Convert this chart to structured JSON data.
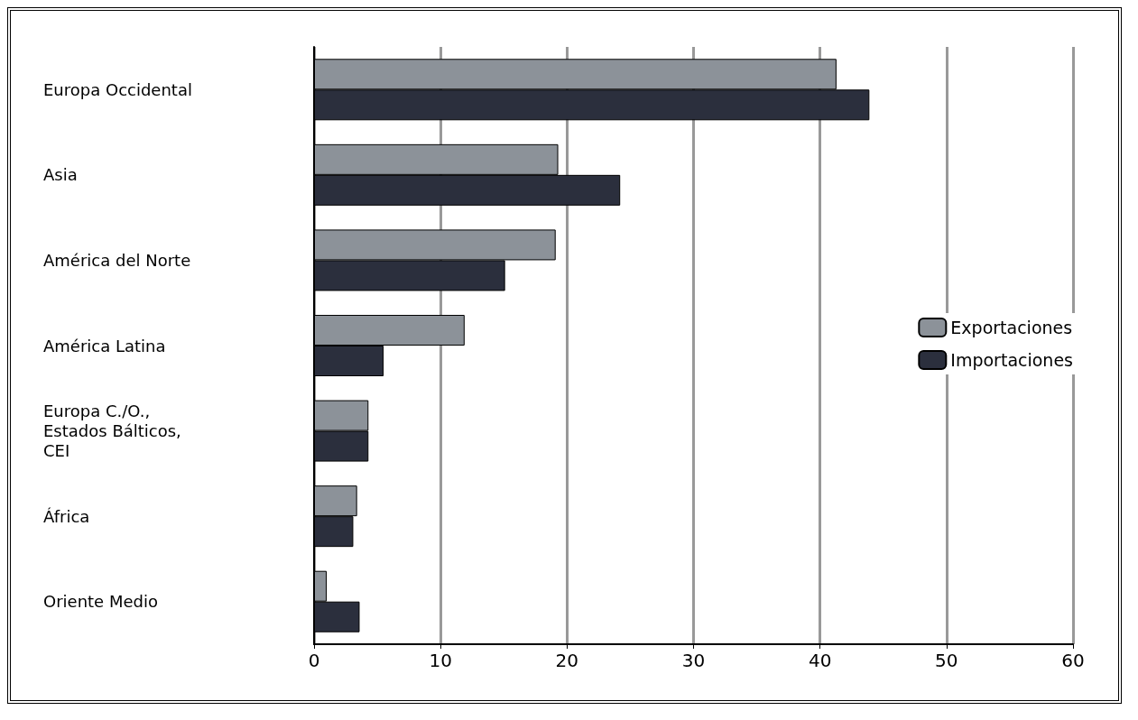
{
  "chart_data": {
    "type": "bar",
    "orientation": "horizontal",
    "categories": [
      "Europa Occidental",
      "Asia",
      "América del Norte",
      "América Latina",
      "Europa C./O.,\nEstados Bálticos,\nCEI",
      "África",
      "Oriente Medio"
    ],
    "series": [
      {
        "name": "Exportaciones",
        "color": "#8c9299",
        "values": [
          41.3,
          19.3,
          19.1,
          11.9,
          4.3,
          3.4,
          1.0
        ]
      },
      {
        "name": "Importaciones",
        "color": "#2b2f3d",
        "values": [
          43.9,
          24.2,
          15.1,
          5.5,
          4.3,
          3.1,
          3.6
        ]
      }
    ],
    "xlim": [
      0,
      60
    ],
    "xticks": [
      0,
      10,
      20,
      30,
      40,
      50,
      60
    ],
    "grid": "x",
    "legend": "right"
  }
}
